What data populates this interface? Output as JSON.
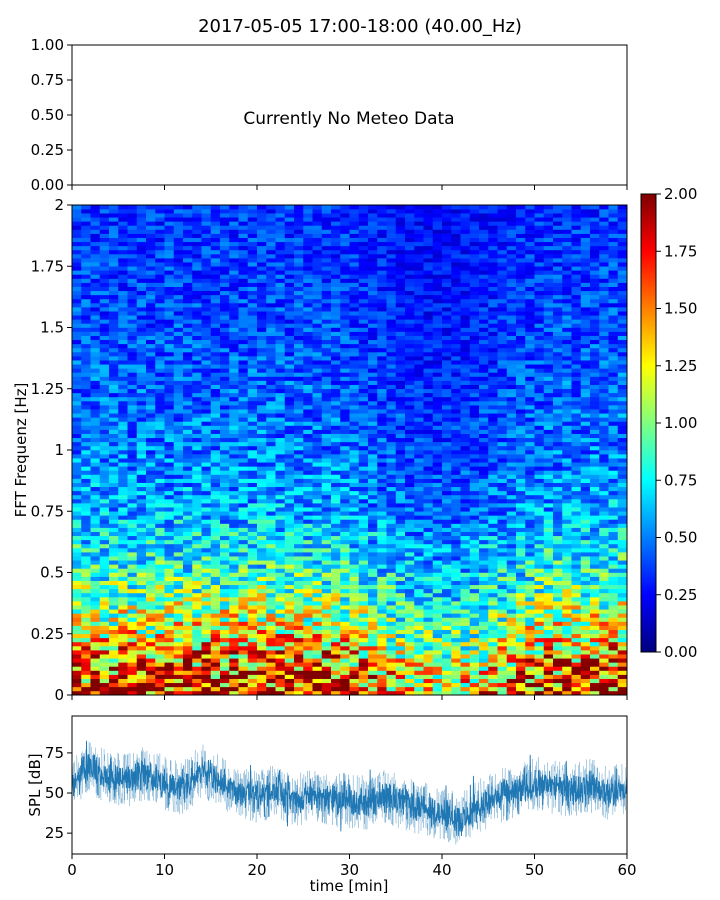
{
  "figure": {
    "title": "2017-05-05 17:00-18:00 (40.00_Hz)"
  },
  "chart_data": [
    {
      "type": "line",
      "panel": "meteo",
      "title": "2017-05-05 17:00-18:00 (40.00_Hz)",
      "message": "Currently No Meteo Data",
      "ylim": [
        0,
        1
      ],
      "y_ticks": [
        "0.00",
        "0.25",
        "0.50",
        "0.75",
        "1.00"
      ],
      "x_ticks_shown": false,
      "series": []
    },
    {
      "type": "heatmap",
      "panel": "spectrogram",
      "xlabel": "",
      "ylabel": "FFT Frequenz [Hz]",
      "xlim": [
        0,
        60
      ],
      "ylim": [
        0,
        2
      ],
      "y_ticks": [
        "0",
        "0.25",
        "0.5",
        "0.75",
        "1",
        "1.25",
        "1.5",
        "1.75",
        "2"
      ],
      "colorscale": "jet",
      "value_range": [
        0,
        2
      ],
      "colorbar_ticks": [
        "0.00",
        "0.25",
        "0.50",
        "0.75",
        "1.00",
        "1.25",
        "1.50",
        "1.75",
        "2.00"
      ],
      "mean_profile": {
        "frequency_hz": [
          0.0,
          0.1,
          0.25,
          0.5,
          0.75,
          1.0,
          1.5,
          2.0
        ],
        "typical_value": [
          1.8,
          1.6,
          1.25,
          0.85,
          0.6,
          0.5,
          0.4,
          0.35
        ]
      },
      "trend_note": "Higher values at low frequencies, weaker between 35-45 min"
    },
    {
      "type": "line",
      "panel": "spl",
      "xlabel": "time [min]",
      "ylabel": "SPL [dB]",
      "xlim": [
        0,
        60
      ],
      "ylim": [
        12,
        98
      ],
      "x_ticks": [
        "0",
        "10",
        "20",
        "30",
        "40",
        "50",
        "60"
      ],
      "y_ticks": [
        "25",
        "50",
        "75"
      ],
      "color": "#1f77b4",
      "series": [
        {
          "name": "SPL",
          "x": [
            0,
            2,
            4,
            6,
            8,
            10,
            12,
            14,
            16,
            18,
            20,
            22,
            24,
            26,
            28,
            30,
            32,
            34,
            36,
            38,
            40,
            42,
            44,
            46,
            48,
            50,
            52,
            54,
            56,
            58,
            60
          ],
          "y": [
            55,
            66,
            60,
            58,
            63,
            56,
            53,
            64,
            58,
            50,
            47,
            52,
            45,
            49,
            46,
            45,
            44,
            48,
            43,
            40,
            38,
            33,
            42,
            48,
            50,
            56,
            54,
            51,
            55,
            50,
            52
          ]
        }
      ]
    }
  ]
}
